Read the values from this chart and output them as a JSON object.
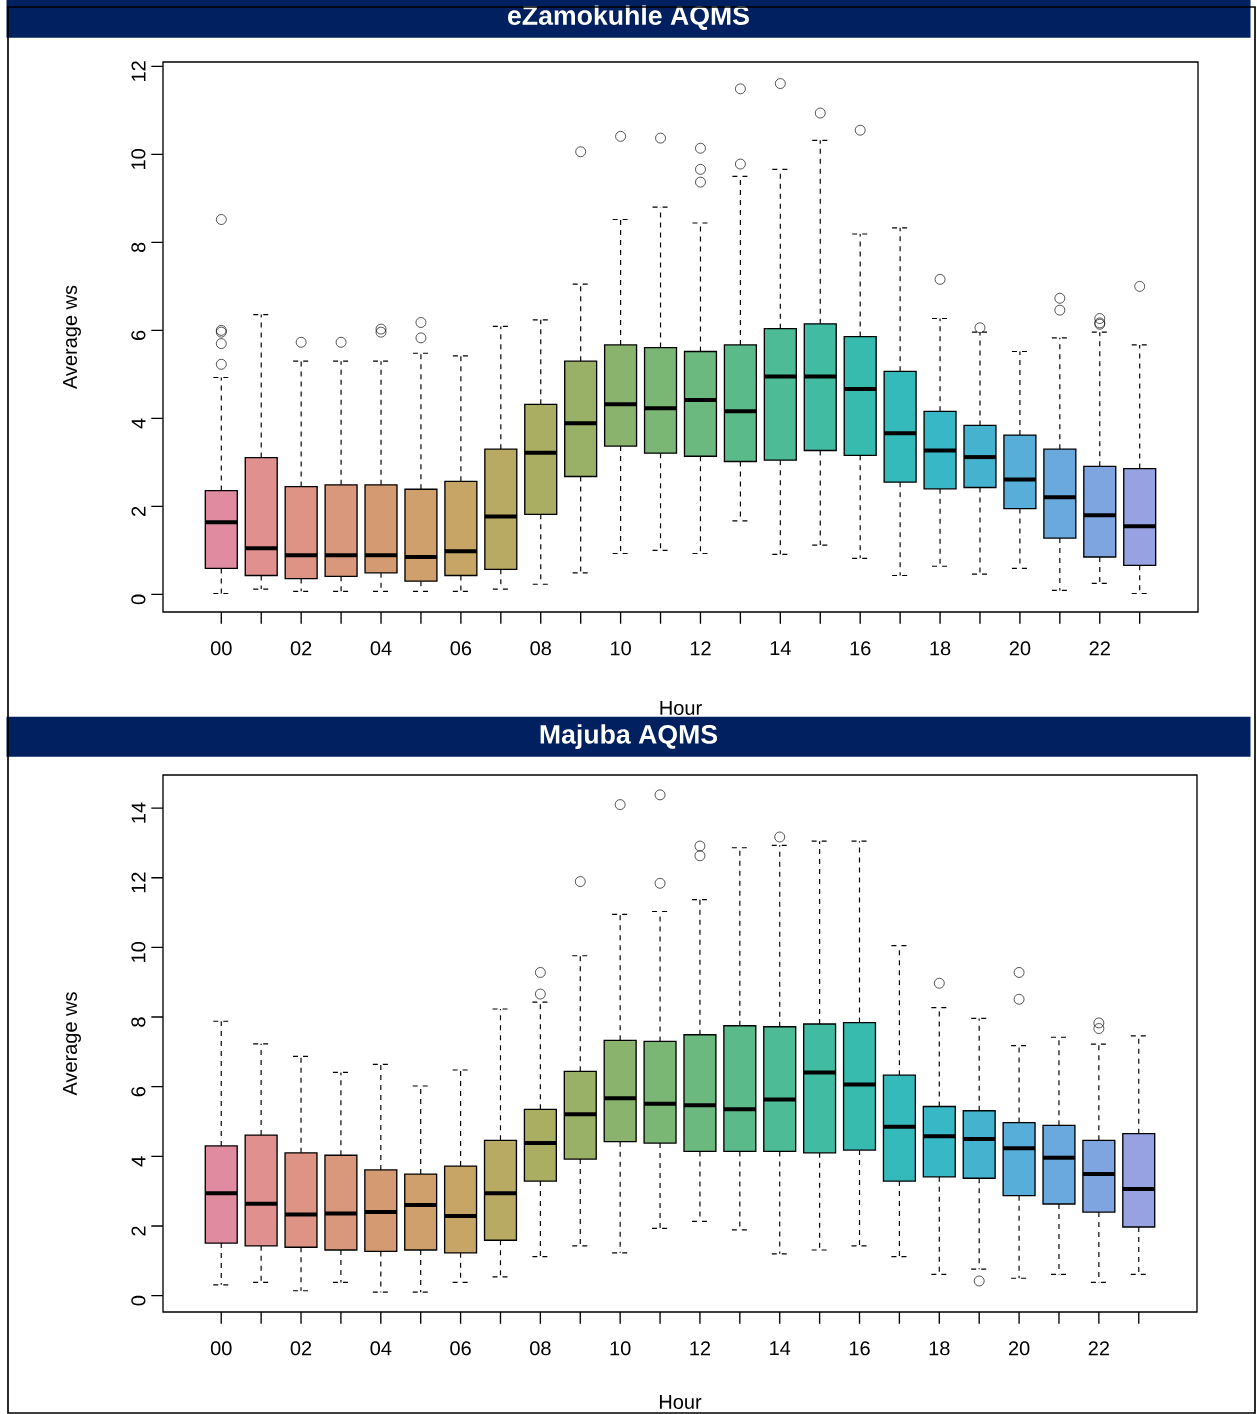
{
  "chart_data": [
    {
      "type": "box",
      "title": "eZamokuhle AQMS",
      "xlabel": "Hour",
      "ylabel": "Average ws",
      "categories": [
        "00",
        null,
        "02",
        null,
        "04",
        null,
        "06",
        null,
        "08",
        null,
        "10",
        null,
        "12",
        null,
        "14",
        null,
        "16",
        null,
        "18",
        null,
        "20",
        null,
        "22",
        null
      ],
      "colors": [
        "#E08BA0",
        "#E0908F",
        "#DD9485",
        "#D9977C",
        "#D49B73",
        "#CFA06B",
        "#C6A566",
        "#B8AA62",
        "#A9AE62",
        "#99B166",
        "#8AB46D",
        "#7AB775",
        "#6BB97E",
        "#5BBA89",
        "#4DBB95",
        "#41BBA2",
        "#38BBAF",
        "#34BABB",
        "#38B7C6",
        "#45B3D0",
        "#57AED8",
        "#6AA9DE",
        "#7FA5E1",
        "#96A2E2"
      ],
      "ylim": [
        -0.4,
        12.1
      ],
      "yticks": [
        0,
        2,
        4,
        6,
        8,
        10,
        12
      ],
      "boxes": [
        {
          "low": 0.02,
          "q1": 0.59,
          "median": 1.64,
          "q3": 2.36,
          "high": 4.93,
          "outliers": [
            8.52,
            6.0,
            5.96,
            5.7,
            5.23
          ]
        },
        {
          "low": 0.12,
          "q1": 0.43,
          "median": 1.05,
          "q3": 3.11,
          "high": 6.36
        },
        {
          "low": 0.07,
          "q1": 0.36,
          "median": 0.89,
          "q3": 2.45,
          "high": 5.3,
          "outliers": [
            5.73
          ]
        },
        {
          "low": 0.07,
          "q1": 0.41,
          "median": 0.89,
          "q3": 2.49,
          "high": 5.3,
          "outliers": [
            5.73
          ]
        },
        {
          "low": 0.07,
          "q1": 0.49,
          "median": 0.89,
          "q3": 2.49,
          "high": 5.3,
          "outliers": [
            6.03,
            5.96
          ]
        },
        {
          "low": 0.07,
          "q1": 0.3,
          "median": 0.85,
          "q3": 2.39,
          "high": 5.48,
          "outliers": [
            6.18,
            5.83
          ]
        },
        {
          "low": 0.07,
          "q1": 0.43,
          "median": 0.98,
          "q3": 2.57,
          "high": 5.42
        },
        {
          "low": 0.12,
          "q1": 0.57,
          "median": 1.77,
          "q3": 3.3,
          "high": 6.09
        },
        {
          "low": 0.23,
          "q1": 1.82,
          "median": 3.22,
          "q3": 4.32,
          "high": 6.24
        },
        {
          "low": 0.49,
          "q1": 2.68,
          "median": 3.89,
          "q3": 5.3,
          "high": 7.05,
          "outliers": [
            10.06
          ]
        },
        {
          "low": 0.93,
          "q1": 3.37,
          "median": 4.32,
          "q3": 5.67,
          "high": 8.52,
          "outliers": [
            10.41
          ]
        },
        {
          "low": 1.0,
          "q1": 3.21,
          "median": 4.23,
          "q3": 5.61,
          "high": 8.8,
          "outliers": [
            10.37
          ]
        },
        {
          "low": 0.93,
          "q1": 3.14,
          "median": 4.42,
          "q3": 5.52,
          "high": 8.44,
          "outliers": [
            10.14,
            9.66,
            9.37
          ]
        },
        {
          "low": 1.67,
          "q1": 3.02,
          "median": 4.16,
          "q3": 5.67,
          "high": 9.5,
          "outliers": [
            11.49,
            9.78
          ]
        },
        {
          "low": 0.91,
          "q1": 3.05,
          "median": 4.95,
          "q3": 6.04,
          "high": 9.66,
          "outliers": [
            11.61
          ]
        },
        {
          "low": 1.12,
          "q1": 3.27,
          "median": 4.95,
          "q3": 6.15,
          "high": 10.32,
          "outliers": [
            10.94
          ]
        },
        {
          "low": 0.82,
          "q1": 3.16,
          "median": 4.67,
          "q3": 5.86,
          "high": 8.19,
          "outliers": [
            10.55
          ]
        },
        {
          "low": 0.43,
          "q1": 2.55,
          "median": 3.66,
          "q3": 5.07,
          "high": 8.33
        },
        {
          "low": 0.64,
          "q1": 2.4,
          "median": 3.27,
          "q3": 4.16,
          "high": 6.27,
          "outliers": [
            7.16
          ]
        },
        {
          "low": 0.46,
          "q1": 2.43,
          "median": 3.12,
          "q3": 3.84,
          "high": 5.96,
          "outliers": [
            6.06
          ]
        },
        {
          "low": 0.59,
          "q1": 1.95,
          "median": 2.61,
          "q3": 3.62,
          "high": 5.52
        },
        {
          "low": 0.09,
          "q1": 1.28,
          "median": 2.21,
          "q3": 3.3,
          "high": 5.83,
          "outliers": [
            6.73,
            6.46
          ]
        },
        {
          "low": 0.25,
          "q1": 0.85,
          "median": 1.8,
          "q3": 2.91,
          "high": 5.96,
          "outliers": [
            6.27,
            6.17,
            6.14
          ]
        },
        {
          "low": 0.02,
          "q1": 0.66,
          "median": 1.55,
          "q3": 2.86,
          "high": 5.67,
          "outliers": [
            7.0
          ]
        }
      ]
    },
    {
      "type": "box",
      "title": "Majuba AQMS",
      "xlabel": "Hour",
      "ylabel": "Average ws",
      "categories": [
        "00",
        null,
        "02",
        null,
        "04",
        null,
        "06",
        null,
        "08",
        null,
        "10",
        null,
        "12",
        null,
        "14",
        null,
        "16",
        null,
        "18",
        null,
        "20",
        null,
        "22",
        null
      ],
      "colors": [
        "#E08BA0",
        "#E0908F",
        "#DD9485",
        "#D9977C",
        "#D49B73",
        "#CFA06B",
        "#C6A566",
        "#B8AA62",
        "#A9AE62",
        "#99B166",
        "#8AB46D",
        "#7AB775",
        "#6BB97E",
        "#5BBA89",
        "#4DBB95",
        "#41BBA2",
        "#38BBAF",
        "#34BABB",
        "#38B7C6",
        "#45B3D0",
        "#57AED8",
        "#6AA9DE",
        "#7FA5E1",
        "#96A2E2"
      ],
      "ylim": [
        -0.47,
        14.95
      ],
      "yticks": [
        0,
        2,
        4,
        6,
        8,
        10,
        12,
        14
      ],
      "boxes": [
        {
          "low": 0.31,
          "q1": 1.51,
          "median": 2.94,
          "q3": 4.3,
          "high": 7.88
        },
        {
          "low": 0.38,
          "q1": 1.43,
          "median": 2.64,
          "q3": 4.61,
          "high": 7.23
        },
        {
          "low": 0.14,
          "q1": 1.39,
          "median": 2.33,
          "q3": 4.1,
          "high": 6.87
        },
        {
          "low": 0.38,
          "q1": 1.31,
          "median": 2.36,
          "q3": 4.03,
          "high": 6.41
        },
        {
          "low": 0.1,
          "q1": 1.27,
          "median": 2.4,
          "q3": 3.61,
          "high": 6.64
        },
        {
          "low": 0.1,
          "q1": 1.31,
          "median": 2.6,
          "q3": 3.49,
          "high": 6.02
        },
        {
          "low": 0.38,
          "q1": 1.23,
          "median": 2.29,
          "q3": 3.72,
          "high": 6.48
        },
        {
          "low": 0.54,
          "q1": 1.59,
          "median": 2.94,
          "q3": 4.46,
          "high": 8.23
        },
        {
          "low": 1.12,
          "q1": 3.29,
          "median": 4.38,
          "q3": 5.35,
          "high": 8.43,
          "outliers": [
            9.28,
            8.66
          ]
        },
        {
          "low": 1.43,
          "q1": 3.92,
          "median": 5.21,
          "q3": 6.44,
          "high": 9.76,
          "outliers": [
            11.89
          ]
        },
        {
          "low": 1.23,
          "q1": 4.42,
          "median": 5.67,
          "q3": 7.33,
          "high": 10.95,
          "outliers": [
            14.1
          ]
        },
        {
          "low": 1.93,
          "q1": 4.38,
          "median": 5.51,
          "q3": 7.3,
          "high": 11.03,
          "outliers": [
            14.38,
            11.84
          ]
        },
        {
          "low": 2.13,
          "q1": 4.14,
          "median": 5.47,
          "q3": 7.49,
          "high": 11.37,
          "outliers": [
            12.91,
            12.63
          ]
        },
        {
          "low": 1.89,
          "q1": 4.14,
          "median": 5.35,
          "q3": 7.75,
          "high": 12.86
        },
        {
          "low": 1.2,
          "q1": 4.14,
          "median": 5.63,
          "q3": 7.72,
          "high": 12.93,
          "outliers": [
            13.17
          ]
        },
        {
          "low": 1.31,
          "q1": 4.1,
          "median": 6.41,
          "q3": 7.8,
          "high": 13.05
        },
        {
          "low": 1.43,
          "q1": 4.18,
          "median": 6.06,
          "q3": 7.84,
          "high": 13.05
        },
        {
          "low": 1.12,
          "q1": 3.29,
          "median": 4.85,
          "q3": 6.33,
          "high": 10.05
        },
        {
          "low": 0.61,
          "q1": 3.41,
          "median": 4.58,
          "q3": 5.43,
          "high": 8.27,
          "outliers": [
            8.97
          ]
        },
        {
          "low": 0.76,
          "q1": 3.37,
          "median": 4.5,
          "q3": 5.31,
          "high": 7.96,
          "outliers": [
            0.42
          ]
        },
        {
          "low": 0.5,
          "q1": 2.87,
          "median": 4.23,
          "q3": 4.97,
          "high": 7.18,
          "outliers": [
            9.28,
            8.51
          ]
        },
        {
          "low": 0.61,
          "q1": 2.63,
          "median": 3.96,
          "q3": 4.89,
          "high": 7.42
        },
        {
          "low": 0.38,
          "q1": 2.4,
          "median": 3.49,
          "q3": 4.46,
          "high": 7.22,
          "outliers": [
            7.83,
            7.67
          ]
        },
        {
          "low": 0.61,
          "q1": 1.97,
          "median": 3.06,
          "q3": 4.65,
          "high": 7.46
        }
      ]
    }
  ]
}
